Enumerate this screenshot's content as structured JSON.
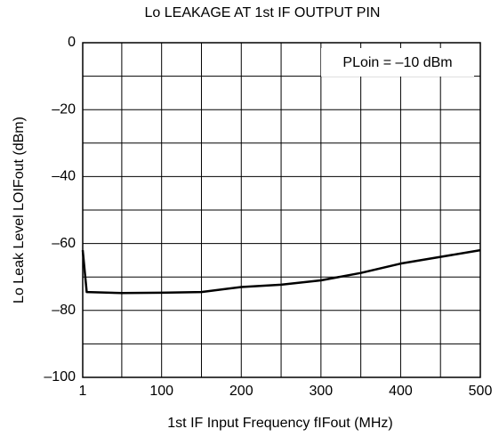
{
  "chart_data": {
    "type": "line",
    "title": "Lo LEAKAGE AT 1st IF OUTPUT PIN",
    "x_label": {
      "text": "1st IF Input Frequency  f",
      "sub": "IFout",
      "unit": "  (MHz)"
    },
    "y_label": {
      "text": "Lo Leak Level  L",
      "sub": "OIFout",
      "unit": "  (dBm)"
    },
    "annotation": {
      "text": "P",
      "sub": "Loin",
      "rest": " = –10 dBm"
    },
    "x": [
      1,
      6,
      50,
      100,
      150,
      200,
      250,
      300,
      350,
      400,
      450,
      500
    ],
    "series": [
      {
        "name": "Lo leakage",
        "color": "#000000",
        "values": [
          -62,
          -74.5,
          -74.8,
          -74.7,
          -74.5,
          -73,
          -72.3,
          -71,
          -68.8,
          -66,
          -64,
          -62
        ]
      }
    ],
    "xlim": [
      1,
      500
    ],
    "xticks": [
      1,
      100,
      200,
      300,
      400,
      500
    ],
    "x_minor_ticks": [
      50,
      150,
      250,
      350,
      450
    ],
    "ylim": [
      -100,
      0
    ],
    "yticks": [
      {
        "value": -100,
        "label": "–100"
      },
      {
        "value": -80,
        "label": "–80"
      },
      {
        "value": -60,
        "label": "–60"
      },
      {
        "value": -40,
        "label": "–40"
      },
      {
        "value": -20,
        "label": "–20"
      },
      0
    ],
    "y_minor_ticks": [
      -90,
      -70,
      -50,
      -30,
      -10
    ],
    "grid": true
  }
}
